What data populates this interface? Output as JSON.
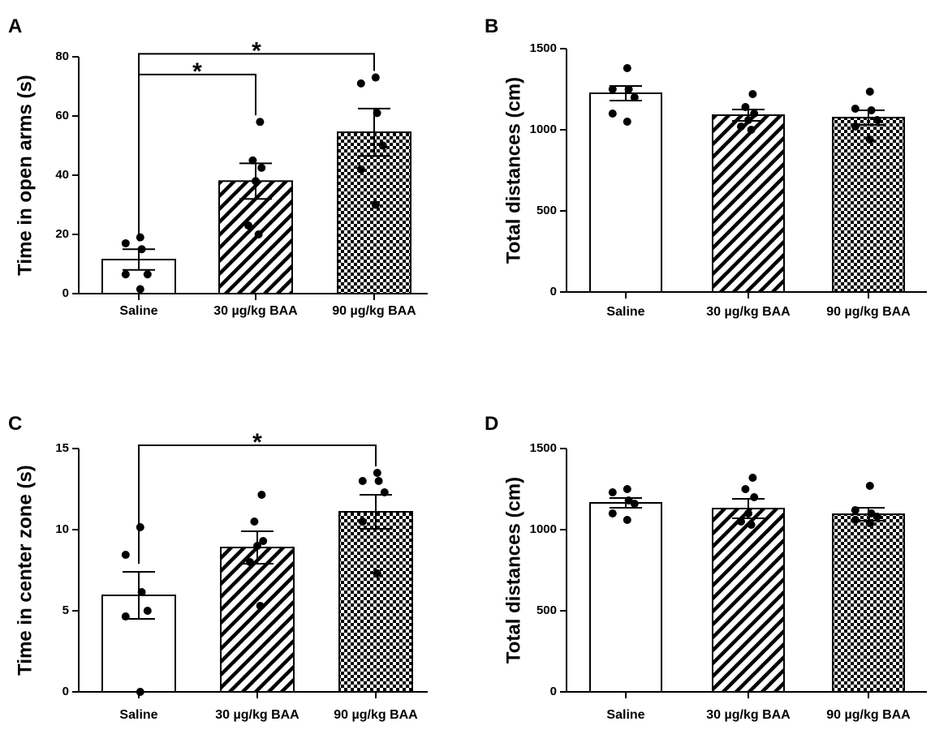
{
  "figure": {
    "panels": [
      "A",
      "B",
      "C",
      "D"
    ]
  },
  "chart_data": [
    {
      "panel": "A",
      "type": "bar",
      "title": "",
      "xlabel": "",
      "ylabel": "Time in open arms (s)",
      "categories": [
        "Saline",
        "30 µg/kg BAA",
        "90 µg/kg BAA"
      ],
      "fills": [
        "white",
        "diagonal",
        "checker"
      ],
      "values": [
        11.5,
        38,
        54.5
      ],
      "sem": [
        3.5,
        6,
        8
      ],
      "points": [
        [
          19,
          17,
          15,
          6.5,
          6.5,
          1.5
        ],
        [
          58,
          45,
          42.5,
          38,
          23,
          20
        ],
        [
          73,
          71,
          61,
          50,
          42,
          30
        ]
      ],
      "ylim": [
        0,
        80
      ],
      "yticks": [
        0,
        20,
        40,
        60,
        80
      ],
      "significance": [
        {
          "from": 0,
          "to": 1,
          "level": 74,
          "label": "*"
        },
        {
          "from": 0,
          "to": 2,
          "level": 81,
          "label": "*"
        }
      ]
    },
    {
      "panel": "B",
      "type": "bar",
      "title": "",
      "xlabel": "",
      "ylabel": "Total distances (cm)",
      "categories": [
        "Saline",
        "30 µg/kg BAA",
        "90 µg/kg BAA"
      ],
      "fills": [
        "white",
        "diagonal",
        "checker"
      ],
      "values": [
        1225,
        1090,
        1075
      ],
      "sem": [
        45,
        35,
        45
      ],
      "points": [
        [
          1380,
          1250,
          1250,
          1200,
          1100,
          1050
        ],
        [
          1220,
          1140,
          1100,
          1060,
          1020,
          1000
        ],
        [
          1235,
          1130,
          1120,
          1060,
          1020,
          940
        ]
      ],
      "ylim": [
        0,
        1500
      ],
      "yticks": [
        0,
        500,
        1000,
        1500
      ],
      "significance": []
    },
    {
      "panel": "C",
      "type": "bar",
      "title": "",
      "xlabel": "",
      "ylabel": "Time in center zone (s)",
      "categories": [
        "Saline",
        "30 µg/kg BAA",
        "90 µg/kg BAA"
      ],
      "fills": [
        "white",
        "diagonal",
        "checker"
      ],
      "values": [
        5.95,
        8.9,
        11.1
      ],
      "sem": [
        1.45,
        1.0,
        1.05
      ],
      "points": [
        [
          10.15,
          8.45,
          6.15,
          5.0,
          4.65,
          0.0
        ],
        [
          12.15,
          10.5,
          9.3,
          9.0,
          8.0,
          5.3
        ],
        [
          13.5,
          13.0,
          13.0,
          12.3,
          10.5,
          7.3
        ]
      ],
      "ylim": [
        0,
        15
      ],
      "yticks": [
        0,
        5,
        10,
        15
      ],
      "significance": [
        {
          "from": 0,
          "to": 2,
          "level": 15.2,
          "label": "*"
        }
      ]
    },
    {
      "panel": "D",
      "type": "bar",
      "title": "",
      "xlabel": "",
      "ylabel": "Total distances (cm)",
      "categories": [
        "Saline",
        "30 µg/kg BAA",
        "90 µg/kg BAA"
      ],
      "fills": [
        "white",
        "diagonal",
        "checker"
      ],
      "values": [
        1165,
        1130,
        1095
      ],
      "sem": [
        30,
        60,
        40
      ],
      "points": [
        [
          1250,
          1230,
          1180,
          1160,
          1100,
          1060
        ],
        [
          1320,
          1250,
          1200,
          1100,
          1050,
          1030
        ],
        [
          1270,
          1120,
          1100,
          1080,
          1060,
          1040
        ]
      ],
      "ylim": [
        0,
        1500
      ],
      "yticks": [
        0,
        500,
        1000,
        1500
      ],
      "significance": []
    }
  ]
}
